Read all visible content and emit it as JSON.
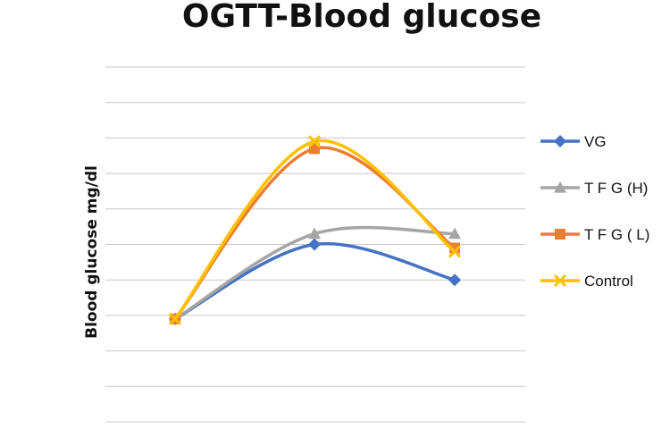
{
  "chart_data": {
    "type": "line",
    "title": "OGTT-Blood glucose",
    "xlabel": "",
    "ylabel": "Blood glucose mg/dl",
    "x": [
      1,
      2,
      3
    ],
    "ylim": [
      0,
      10
    ],
    "grid": true,
    "legend_position": "right",
    "smooth": true,
    "series": [
      {
        "name": "VG",
        "values": [
          2.9,
          5.0,
          4.0
        ],
        "color": "#4472C4",
        "marker": "diamond"
      },
      {
        "name": "T F G (H)",
        "values": [
          2.9,
          5.3,
          5.3
        ],
        "color": "#A5A5A5",
        "marker": "triangle"
      },
      {
        "name": "T F G ( L)",
        "values": [
          2.9,
          7.7,
          4.9
        ],
        "color": "#ED7D31",
        "marker": "square"
      },
      {
        "name": "Control",
        "values": [
          2.9,
          7.9,
          4.8
        ],
        "color": "#FFC000",
        "marker": "x"
      }
    ]
  }
}
